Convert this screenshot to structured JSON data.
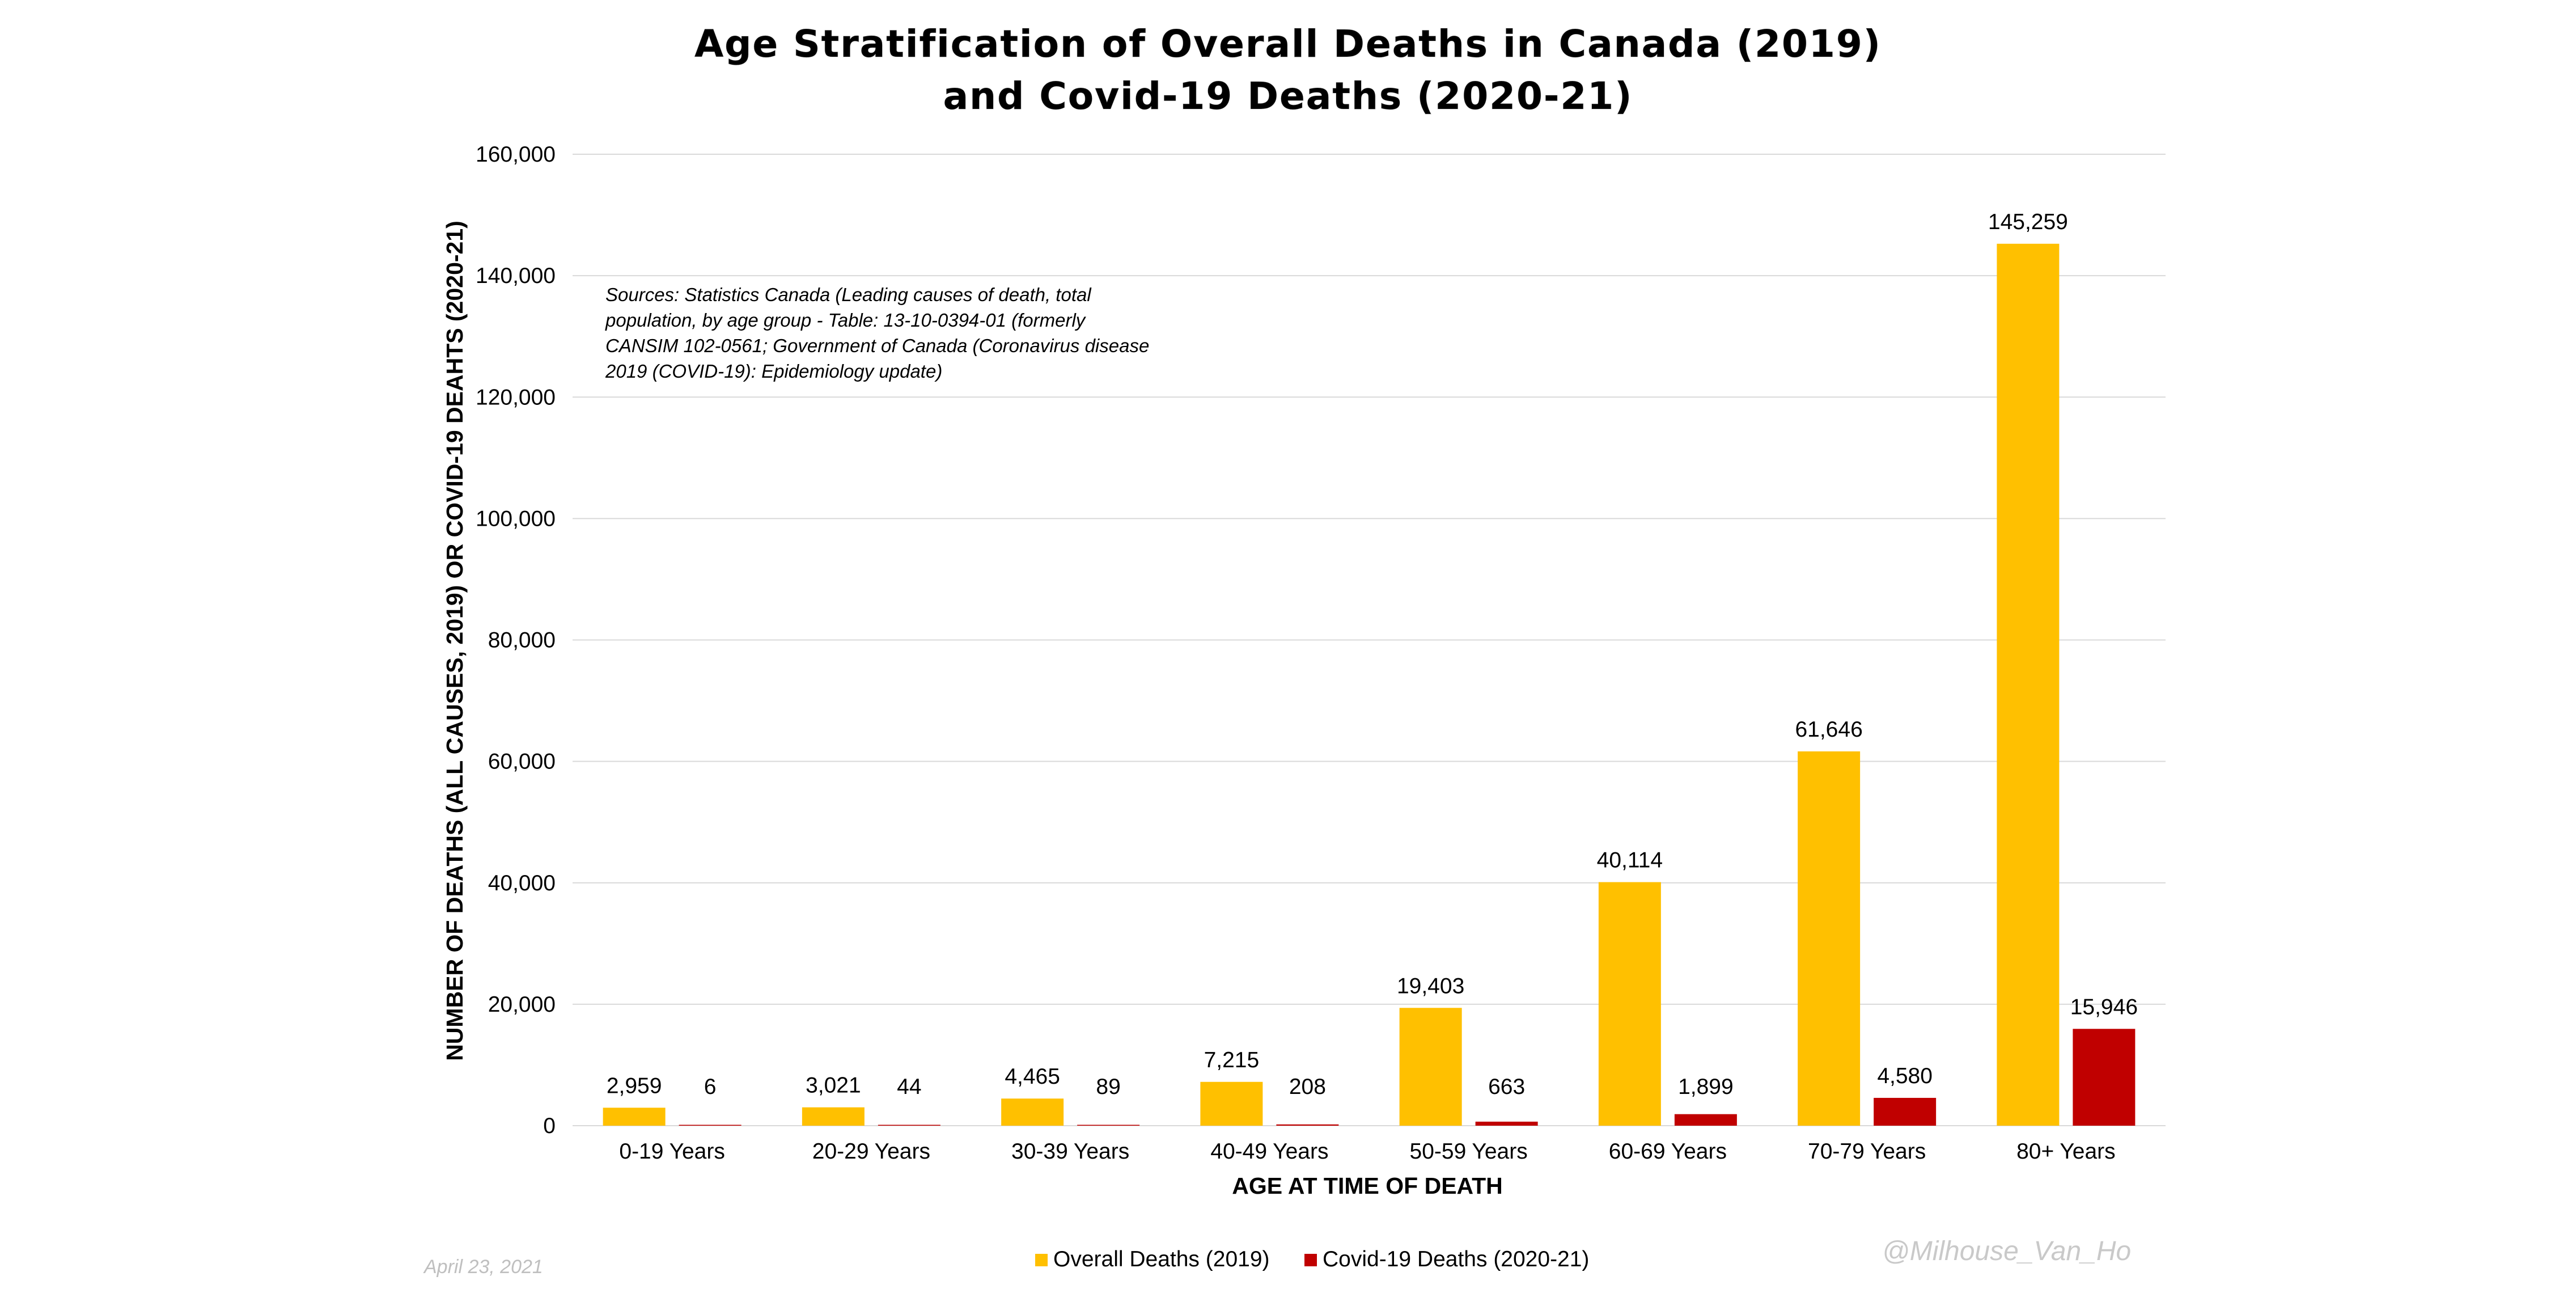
{
  "chart_data": {
    "type": "bar",
    "title_lines": [
      "Age Stratification of Overall Deaths in Canada (2019)",
      "and Covid-19 Deaths (2020-21)"
    ],
    "xlabel": "AGE AT TIME OF DEATH",
    "ylabel": "NUMBER OF DEATHS (ALL CAUSES, 2019) OR COVID-19 DEAHTS (2020-21)",
    "ylim": [
      0,
      160000
    ],
    "yticks": [
      0,
      20000,
      40000,
      60000,
      80000,
      100000,
      120000,
      140000,
      160000
    ],
    "ytick_labels": [
      "0",
      "20,000",
      "40,000",
      "60,000",
      "80,000",
      "100,000",
      "120,000",
      "140,000",
      "160,000"
    ],
    "grid": true,
    "legend_position": "bottom",
    "categories": [
      "0-19 Years",
      "20-29 Years",
      "30-39 Years",
      "40-49 Years",
      "50-59 Years",
      "60-69 Years",
      "70-79 Years",
      "80+ Years"
    ],
    "series": [
      {
        "name": "Overall Deaths (2019)",
        "color": "#FFC000",
        "values": [
          2959,
          3021,
          4465,
          7215,
          19403,
          40114,
          61646,
          145259
        ],
        "labels": [
          "2,959",
          "3,021",
          "4,465",
          "7,215",
          "19,403",
          "40,114",
          "61,646",
          "145,259"
        ]
      },
      {
        "name": "Covid-19 Deaths (2020-21)",
        "color": "#C00000",
        "values": [
          6,
          44,
          89,
          208,
          663,
          1899,
          4580,
          15946
        ],
        "labels": [
          "6",
          "44",
          "89",
          "208",
          "663",
          "1,899",
          "4,580",
          "15,946"
        ]
      }
    ],
    "annotation_lines": [
      "Sources: Statistics Canada (Leading causes of death, total",
      "population, by age group - Table: 13-10-0394-01 (formerly",
      "CANSIM 102-0561; Government of Canada (Coronavirus disease",
      "2019 (COVID-19): Epidemiology update)"
    ]
  },
  "footer": {
    "date": "April 23, 2021",
    "handle": "@Milhouse_Van_Ho"
  }
}
